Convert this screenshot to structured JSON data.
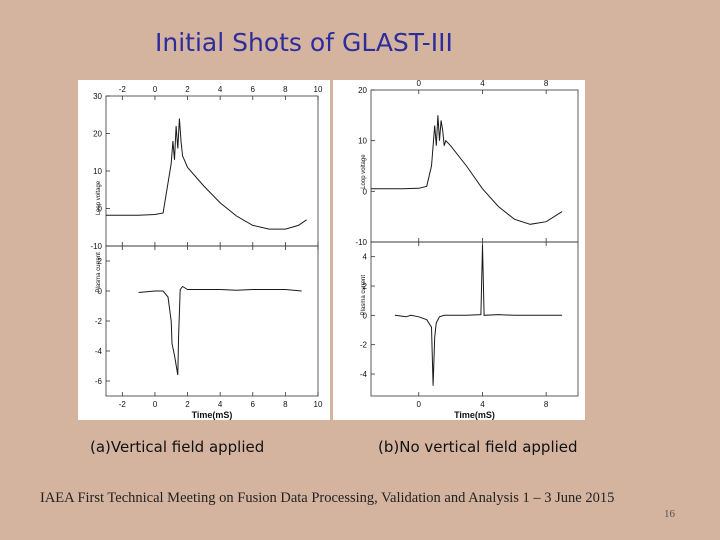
{
  "slide": {
    "title": "Initial Shots of GLAST-III",
    "footer": "IAEA First Technical Meeting on Fusion Data Processing, Validation and Analysis  1 – 3 June 2015",
    "page_number": "16"
  },
  "chart_data": [
    {
      "id": "a",
      "type": "line",
      "caption": "(a)Vertical field applied",
      "xlabel": "Time(mS)",
      "xlim": [
        -3,
        10
      ],
      "xticks": [
        -2,
        0,
        2,
        4,
        6,
        8,
        10
      ],
      "top": {
        "ylim": [
          -10,
          30
        ],
        "yticks": [
          -10,
          0,
          10,
          20,
          30
        ],
        "legend_text": "Loop voltage",
        "series": [
          {
            "x": [
              -3,
              -2,
              -1,
              0,
              0.5,
              1.0,
              1.1,
              1.2,
              1.3,
              1.4,
              1.5,
              1.6,
              1.7,
              1.8,
              2,
              3,
              4,
              5,
              6,
              7,
              8,
              8.8,
              9.3
            ],
            "y": [
              -1.8,
              -1.8,
              -1.8,
              -1.6,
              -1.2,
              12,
              18,
              13,
              22,
              16,
              24,
              18,
              14,
              13,
              11,
              6,
              1.5,
              -2,
              -4.5,
              -5.5,
              -5.5,
              -4.5,
              -3
            ]
          }
        ]
      },
      "bottom": {
        "ylim": [
          -7,
          3
        ],
        "yticks": [
          -6,
          -4,
          -2,
          0,
          2
        ],
        "legend_text": "Plasma current",
        "series": [
          {
            "x": [
              -1,
              0,
              0.5,
              0.8,
              1.0,
              1.05,
              1.2,
              1.4,
              1.45,
              1.55,
              1.7,
              2,
              3,
              4,
              5,
              6,
              7,
              8,
              9
            ],
            "y": [
              -0.1,
              0,
              0,
              -0.4,
              -2,
              -3.5,
              -4.3,
              -5.6,
              -3,
              0.1,
              0.3,
              0.1,
              0.1,
              0.1,
              0.05,
              0.1,
              0.1,
              0.1,
              0
            ]
          }
        ]
      }
    },
    {
      "id": "b",
      "type": "line",
      "caption": "(b)No vertical field applied",
      "xlabel": "Time(mS)",
      "xlim": [
        -3,
        10
      ],
      "xticks": [
        0,
        4,
        8
      ],
      "top": {
        "ylim": [
          -10,
          20
        ],
        "yticks": [
          -10,
          0,
          10,
          20
        ],
        "legend_text": "Loop voltage",
        "series": [
          {
            "x": [
              -3,
              -2,
              -1,
              0,
              0.5,
              0.8,
              1.0,
              1.1,
              1.2,
              1.3,
              1.4,
              1.5,
              1.6,
              1.7,
              2,
              3,
              4,
              5,
              6,
              7,
              8,
              9
            ],
            "y": [
              0.5,
              0.5,
              0.5,
              0.6,
              1,
              5,
              13,
              9,
              15,
              10,
              14,
              12,
              9,
              10,
              9,
              5,
              0.5,
              -3,
              -5.5,
              -6.5,
              -6,
              -4
            ]
          }
        ]
      },
      "bottom": {
        "ylim": [
          -5.5,
          5
        ],
        "yticks": [
          -4,
          -2,
          0,
          2,
          4
        ],
        "legend_text": "Plasma current",
        "series": [
          {
            "x": [
              -1.5,
              -0.8,
              -0.5,
              0,
              0.5,
              0.8,
              0.9,
              1.0,
              1.1,
              1.3,
              1.6,
              2,
              3,
              3.9,
              4.0,
              4.1,
              5,
              6,
              7,
              8,
              9
            ],
            "y": [
              0,
              -0.1,
              0,
              -0.1,
              -0.3,
              -0.8,
              -4.8,
              -1.5,
              -0.5,
              -0.1,
              0,
              0,
              0,
              0.05,
              4.8,
              0,
              0.05,
              0,
              0,
              0,
              0
            ]
          }
        ]
      }
    }
  ]
}
